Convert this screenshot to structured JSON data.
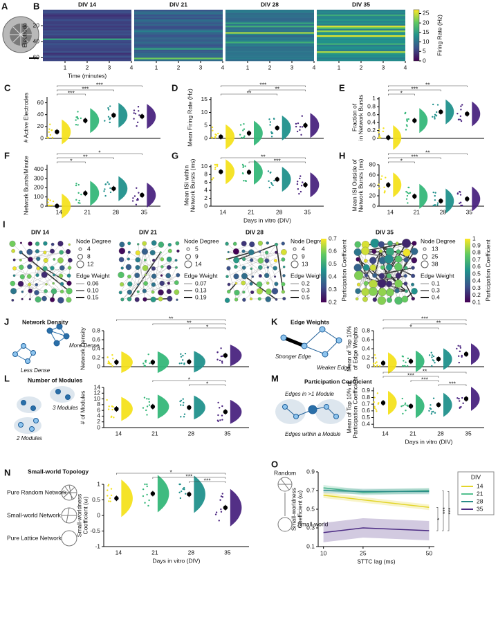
{
  "palette": [
    "#f4e21e",
    "#35b779",
    "#21918c",
    "#4a2480"
  ],
  "figure": {
    "panels": [
      "A",
      "I"
    ],
    "network": {
      "titles": [
        "DIV 14",
        "DIV 21",
        "DIV 28",
        "DIV 35"
      ],
      "node_degree": "Node Degree",
      "edge_weight": "Edge Weight",
      "cbar_label": "Participation Coefficient",
      "legends": [
        {
          "degrees": [
            "4",
            "8",
            "12"
          ],
          "weights": [
            "0.06",
            "0.10",
            "0.15"
          ]
        },
        {
          "degrees": [
            "5",
            "9",
            "14"
          ],
          "weights": [
            "0.07",
            "0.13",
            "0.19"
          ]
        },
        {
          "degrees": [
            "4",
            "9",
            "13"
          ],
          "weights": [
            "0.2",
            "0.3",
            "0.5"
          ]
        },
        {
          "degrees": [
            "13",
            "25",
            "38"
          ],
          "weights": [
            "0.1",
            "0.3",
            "0.4"
          ]
        }
      ],
      "cbars": [
        {
          "ticks": [
            "0.2",
            "0.3",
            "0.4",
            "0.5",
            "0.6",
            "0.7"
          ]
        },
        {
          "ticks": [
            "0.1",
            "0.2",
            "0.3",
            "0.4",
            "0.5",
            "0.6",
            "0.7",
            "0.8",
            "0.9",
            "1"
          ]
        }
      ]
    },
    "schematics": {
      "J": {
        "title": "Network Density",
        "labels": [
          "Less Dense",
          "More Dense"
        ]
      },
      "K": {
        "title": "Edge Weights",
        "labels": [
          "Stronger Edge",
          "Weaker Edge"
        ]
      },
      "L": {
        "title": "Number of Modules",
        "labels": [
          "3 Modules",
          "2 Modules"
        ]
      },
      "M": {
        "title": "Participation Coefficient",
        "labels": [
          "Edges in >1 Module",
          "Edges within a Module"
        ]
      },
      "N": {
        "title": "Small-world Topology",
        "labels": [
          "Pure Random Network",
          "Small-world Network",
          "Pure Lattice Network"
        ]
      },
      "O": {
        "labels": [
          "Random",
          "Small-world"
        ]
      }
    }
  },
  "chart_data": [
    {
      "type": "raster",
      "panel": "B",
      "titles": [
        "DIV 14",
        "DIV 21",
        "DIV 28",
        "DIV 35"
      ],
      "ylabel": "Electrode",
      "xlabel": "Time (minutes)",
      "xlim": [
        0,
        4
      ],
      "xticks": [
        1,
        2,
        3,
        4
      ],
      "ylim": [
        0,
        64
      ],
      "yticks": [
        20,
        40,
        60
      ],
      "colorbar": {
        "label": "Firing Rate (Hz)",
        "lim": [
          0,
          27
        ],
        "ticks": [
          0,
          5,
          10,
          15,
          20,
          25
        ]
      }
    },
    {
      "type": "raincloud",
      "panel": "C",
      "ylabel": [
        "# Active Electrodes"
      ],
      "values": [
        11,
        30,
        39,
        37
      ],
      "ylim": [
        0,
        70
      ],
      "yticks": [
        0,
        20,
        40,
        60
      ],
      "sig": [
        {
          "label": "***",
          "from": 0,
          "to": 1
        },
        {
          "label": "***",
          "from": 0,
          "to": 2
        },
        {
          "label": "***",
          "from": 0,
          "to": 3
        }
      ]
    },
    {
      "type": "raincloud",
      "panel": "D",
      "ylabel": [
        "Mean Firing Rate (Hz)"
      ],
      "values": [
        0.6,
        2,
        4,
        5
      ],
      "ylim": [
        0,
        16
      ],
      "yticks": [
        0,
        5,
        10,
        15
      ],
      "sig": [
        {
          "label": "**",
          "from": 0,
          "to": 2
        },
        {
          "label": "**",
          "from": 1,
          "to": 3
        },
        {
          "label": "***",
          "from": 0,
          "to": 3
        }
      ]
    },
    {
      "type": "raincloud",
      "panel": "E",
      "ylabel": [
        "Fraction of",
        "in Network Bursts"
      ],
      "values": [
        0.02,
        0.45,
        0.67,
        0.62
      ],
      "ylim": [
        0,
        1.05
      ],
      "yticks": [
        0,
        0.2,
        0.4,
        0.6,
        0.8,
        1
      ],
      "sig": [
        {
          "label": "*",
          "from": 0,
          "to": 1
        },
        {
          "label": "***",
          "from": 0,
          "to": 2
        },
        {
          "label": "**",
          "from": 0,
          "to": 3
        }
      ]
    },
    {
      "type": "raincloud",
      "panel": "F",
      "ylabel": [
        "Network Bursts/Minute"
      ],
      "categories": [
        "14",
        "21",
        "28",
        "35"
      ],
      "values": [
        2,
        140,
        190,
        120
      ],
      "ylim": [
        0,
        450
      ],
      "yticks": [
        0,
        100,
        200,
        300,
        400
      ],
      "sig": [
        {
          "label": "*",
          "from": 0,
          "to": 1
        },
        {
          "label": "**",
          "from": 0,
          "to": 2
        },
        {
          "label": "*",
          "from": 0,
          "to": 3
        }
      ]
    },
    {
      "type": "raincloud",
      "panel": "G",
      "ylabel": [
        "Mean ISI within",
        "Network Bursts (ms)"
      ],
      "categories": [
        "14",
        "21",
        "28",
        "35"
      ],
      "xlabel": "Days in vitro (DIV)",
      "values": [
        8.7,
        8.6,
        6.8,
        5.4
      ],
      "ylim": [
        0,
        10.5
      ],
      "yticks": [
        0,
        2,
        4,
        6,
        8,
        10
      ],
      "sig": [
        {
          "label": "***",
          "from": 1,
          "to": 3
        },
        {
          "label": "**",
          "from": 0,
          "to": 3
        }
      ]
    },
    {
      "type": "raincloud",
      "panel": "H",
      "ylabel": [
        "Mean ISI Outside of",
        "Network Bursts (ms)"
      ],
      "categories": [
        "14",
        "21",
        "28",
        "35"
      ],
      "values": [
        41,
        19,
        10,
        14
      ],
      "ylim": [
        0,
        80
      ],
      "yticks": [
        0,
        20,
        40,
        60,
        80
      ],
      "sig": [
        {
          "label": "*",
          "from": 0,
          "to": 1
        },
        {
          "label": "***",
          "from": 0,
          "to": 2
        },
        {
          "label": "**",
          "from": 0,
          "to": 3
        }
      ]
    },
    {
      "type": "raincloud",
      "panel": "J",
      "ylabel": [
        "Network Density"
      ],
      "values": [
        0.1,
        0.1,
        0.11,
        0.25
      ],
      "ylim": [
        0,
        0.8
      ],
      "yticks": [
        0,
        0.2,
        0.4,
        0.6,
        0.8
      ],
      "sig": [
        {
          "label": "*",
          "from": 2,
          "to": 3
        },
        {
          "label": "**",
          "from": 1,
          "to": 3
        },
        {
          "label": "**",
          "from": 0,
          "to": 3
        }
      ]
    },
    {
      "type": "raincloud",
      "panel": "K",
      "ylabel": [
        "Mean of Top 10%",
        "of Edge Weights"
      ],
      "values": [
        0.08,
        0.12,
        0.17,
        0.28
      ],
      "ylim": [
        0,
        0.8
      ],
      "yticks": [
        0,
        0.2,
        0.4,
        0.6,
        0.8
      ],
      "sig": [
        {
          "label": "*",
          "from": 0,
          "to": 2
        },
        {
          "label": "**",
          "from": 1,
          "to": 3
        },
        {
          "label": "***",
          "from": 0,
          "to": 3
        }
      ]
    },
    {
      "type": "raincloud",
      "panel": "L",
      "ylabel": [
        "# of Modules"
      ],
      "categories": [
        "14",
        "21",
        "28",
        "35"
      ],
      "values": [
        6.5,
        7.3,
        7,
        5.5
      ],
      "ylim": [
        0,
        14
      ],
      "yticks": [
        0,
        2,
        4,
        6,
        8,
        10,
        12,
        14
      ],
      "sig": [
        {
          "label": "*",
          "from": 2,
          "to": 3
        },
        {
          "label": "*",
          "from": 1,
          "to": 3
        }
      ]
    },
    {
      "type": "raincloud",
      "panel": "M",
      "ylabel": [
        "Mean of Top 10% of",
        "Participation Coefficient"
      ],
      "categories": [
        "14",
        "21",
        "28",
        "35"
      ],
      "xlabel": "Days in vitro (DIV)",
      "values": [
        0.72,
        0.67,
        0.69,
        0.78
      ],
      "ylim": [
        0.35,
        0.95
      ],
      "yticks": [
        0.4,
        0.5,
        0.6,
        0.7,
        0.8,
        0.9
      ],
      "sig": [
        {
          "label": "***",
          "from": 2,
          "to": 3
        },
        {
          "label": "***",
          "from": 1,
          "to": 2
        },
        {
          "label": "***",
          "from": 0,
          "to": 2
        },
        {
          "label": "**",
          "from": 0,
          "to": 3
        }
      ]
    },
    {
      "type": "raincloud",
      "panel": "N",
      "ylabel": [
        "Small-worldness",
        "Coefficient (ω)"
      ],
      "categories": [
        "14",
        "21",
        "28",
        "35"
      ],
      "xlabel": "Days in vitro (DIV)",
      "values": [
        0.55,
        0.7,
        0.68,
        0.25
      ],
      "ylim": [
        -1,
        1
      ],
      "yticks": [
        -1,
        -0.5,
        0,
        0.5,
        1
      ],
      "sig": [
        {
          "label": "***",
          "from": 2,
          "to": 3
        },
        {
          "label": "***",
          "from": 1,
          "to": 3
        },
        {
          "label": "*",
          "from": 0,
          "to": 3
        }
      ]
    },
    {
      "type": "line",
      "panel": "O",
      "ylabel": [
        "Small-worldness",
        "Coefficient (ω)"
      ],
      "xlabel": "STTC lag (ms)",
      "x": [
        10,
        25,
        50
      ],
      "xlim": [
        8,
        52
      ],
      "xticks": [
        10,
        25,
        50
      ],
      "ylim": [
        0.1,
        0.9
      ],
      "yticks": [
        0.1,
        0.3,
        0.5,
        0.7,
        0.9
      ],
      "legend_title": "DIV",
      "series": [
        {
          "name": "14",
          "color": "#e3d52a",
          "values": [
            0.65,
            0.6,
            0.52
          ]
        },
        {
          "name": "21",
          "color": "#52c08e",
          "values": [
            0.73,
            0.68,
            0.7
          ]
        },
        {
          "name": "28",
          "color": "#2a8c88",
          "values": [
            0.7,
            0.69,
            0.69
          ]
        },
        {
          "name": "35",
          "color": "#4b2a83",
          "values": [
            0.25,
            0.3,
            0.27
          ]
        }
      ],
      "sig": [
        {
          "label": "*"
        },
        {
          "label": "***"
        },
        {
          "label": "***"
        }
      ]
    }
  ]
}
